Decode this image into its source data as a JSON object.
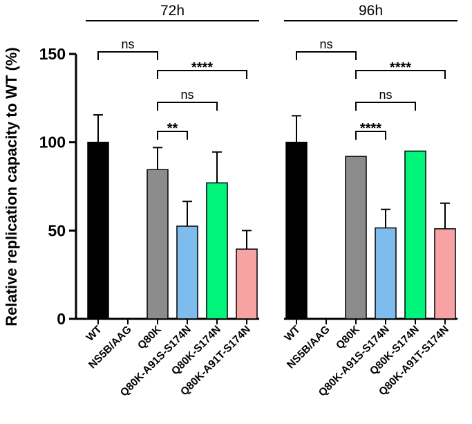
{
  "chart_data": {
    "type": "bar",
    "ylabel": "Relative replication capacity to WT (%)",
    "ylim": [
      0,
      150
    ],
    "yticks": [
      0,
      50,
      100,
      150
    ],
    "groups": [
      {
        "label": "72h",
        "categories": [
          "WT",
          "NS5B/AAG",
          "Q80K",
          "Q80K-A91S-S174N",
          "Q80K-S174N",
          "Q80K-A91T-S174N"
        ],
        "values": [
          100,
          0,
          84.5,
          52.5,
          77,
          39.5
        ],
        "errors": [
          15.5,
          0,
          12.5,
          14,
          17.5,
          10.5
        ],
        "colors": [
          "#000000",
          "#ffffff",
          "#8c8c8c",
          "#7dbcec",
          "#00f57a",
          "#f7a3a3"
        ]
      },
      {
        "label": "96h",
        "categories": [
          "WT",
          "NS5B/AAG",
          "Q80K",
          "Q80K-A91S-S174N",
          "Q80K-S174N",
          "Q80K-A91T-S174N"
        ],
        "values": [
          100,
          0,
          92,
          51.5,
          95,
          51
        ],
        "errors": [
          15,
          0,
          0,
          10.5,
          0,
          14.5
        ],
        "colors": [
          "#000000",
          "#ffffff",
          "#8c8c8c",
          "#7dbcec",
          "#00f57a",
          "#f7a3a3"
        ]
      }
    ],
    "annotations": [
      {
        "group": 0,
        "from": 0,
        "to": 2,
        "text": "ns"
      },
      {
        "group": 0,
        "from": 2,
        "to": 5,
        "text": "****"
      },
      {
        "group": 0,
        "from": 2,
        "to": 4,
        "text": "ns"
      },
      {
        "group": 0,
        "from": 2,
        "to": 3,
        "text": "**"
      },
      {
        "group": 1,
        "from": 0,
        "to": 2,
        "text": "ns"
      },
      {
        "group": 1,
        "from": 2,
        "to": 5,
        "text": "****"
      },
      {
        "group": 1,
        "from": 2,
        "to": 4,
        "text": "ns"
      },
      {
        "group": 1,
        "from": 2,
        "to": 3,
        "text": "****"
      }
    ]
  }
}
